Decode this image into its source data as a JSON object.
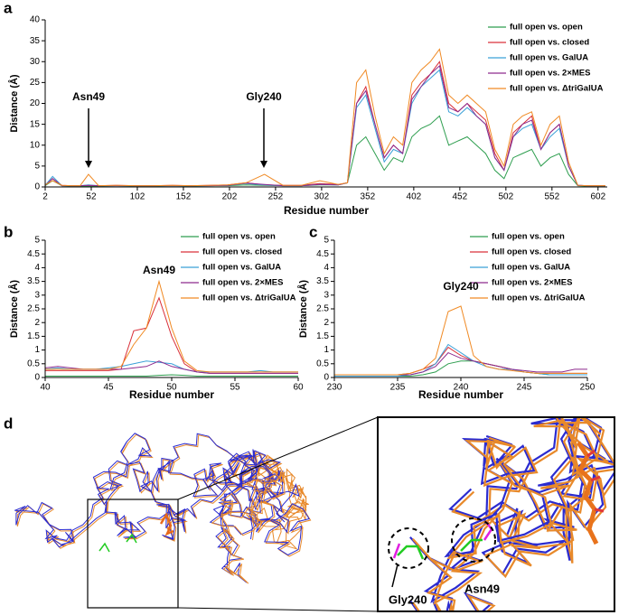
{
  "chart_data": [
    {
      "type": "line",
      "panel": "a",
      "xlabel": "Residue number",
      "ylabel": "Distance (Å)",
      "legend": "upper right",
      "annotations": [
        "Asn49",
        "Gly240"
      ],
      "x": [
        2,
        10,
        20,
        30,
        40,
        49,
        60,
        80,
        100,
        120,
        140,
        160,
        180,
        200,
        220,
        240,
        260,
        280,
        300,
        320,
        330,
        340,
        350,
        360,
        370,
        380,
        390,
        400,
        410,
        420,
        430,
        440,
        450,
        460,
        470,
        480,
        490,
        500,
        510,
        520,
        530,
        540,
        550,
        560,
        570,
        580,
        590,
        600,
        610
      ],
      "xlim": [
        2,
        612
      ],
      "xticks": [
        2,
        52,
        102,
        152,
        202,
        252,
        302,
        352,
        402,
        452,
        502,
        552,
        602
      ],
      "ylim": [
        0,
        40
      ],
      "yticks": [
        0,
        5,
        10,
        15,
        20,
        25,
        30,
        35,
        40
      ],
      "series": [
        {
          "name": "full open vs. open",
          "color": "#2e9e4f",
          "values": [
            0.3,
            1.5,
            0.3,
            0.2,
            0.2,
            0.2,
            0.2,
            0.3,
            0.2,
            0.2,
            0.3,
            0.2,
            0.3,
            0.3,
            0.5,
            0.4,
            0.3,
            0.3,
            0.5,
            0.5,
            1,
            10,
            12,
            8,
            4,
            7,
            6,
            12,
            14,
            15,
            17,
            10,
            11,
            12,
            10,
            8,
            4,
            2,
            7,
            8,
            9,
            5,
            7,
            8,
            3,
            0.3,
            0.2,
            0.2,
            0.2
          ]
        },
        {
          "name": "full open vs. closed",
          "color": "#d9303a",
          "values": [
            0.5,
            2,
            0.4,
            0.3,
            0.3,
            0.4,
            0.3,
            0.4,
            0.3,
            0.3,
            0.4,
            0.3,
            0.4,
            0.5,
            1,
            0.5,
            0.4,
            0.4,
            0.8,
            0.6,
            1,
            20,
            24,
            15,
            7,
            10,
            8,
            22,
            25,
            27,
            30,
            20,
            18,
            20,
            18,
            16,
            8,
            4,
            13,
            15,
            17,
            9,
            13,
            15,
            5,
            0.4,
            0.3,
            0.3,
            0.3
          ]
        },
        {
          "name": "full open vs. GalUA",
          "color": "#3aa0d8",
          "values": [
            0.4,
            2.5,
            0.3,
            0.3,
            0.3,
            0.5,
            0.3,
            0.3,
            0.3,
            0.3,
            0.3,
            0.3,
            0.3,
            0.4,
            0.8,
            0.5,
            0.3,
            0.3,
            0.6,
            0.5,
            1,
            19,
            22,
            14,
            6,
            9,
            8,
            20,
            24,
            26,
            28,
            18,
            17,
            19,
            17,
            15,
            7,
            4,
            12,
            14,
            15,
            9,
            12,
            14,
            5,
            0.4,
            0.3,
            0.3,
            0.3
          ]
        },
        {
          "name": "full open vs. 2×MES",
          "color": "#8e2a8e",
          "values": [
            0.4,
            2,
            0.3,
            0.3,
            0.3,
            0.4,
            0.3,
            0.3,
            0.3,
            0.3,
            0.3,
            0.3,
            0.3,
            0.4,
            0.9,
            0.6,
            0.3,
            0.3,
            0.6,
            0.5,
            1,
            20,
            23,
            15,
            7,
            10,
            8,
            21,
            24,
            27,
            29,
            19,
            18,
            20,
            17,
            15,
            7,
            4,
            12,
            15,
            16,
            9,
            13,
            15,
            5,
            0.4,
            0.3,
            0.3,
            0.3
          ]
        },
        {
          "name": "full open vs. ΔtriGalUA",
          "color": "#f08a24",
          "values": [
            0.5,
            1.5,
            0.4,
            0.3,
            0.3,
            3,
            0.3,
            0.4,
            0.3,
            0.3,
            0.4,
            0.3,
            0.4,
            0.5,
            1,
            3,
            0.4,
            0.4,
            1.5,
            0.6,
            1,
            25,
            28,
            17,
            8,
            12,
            10,
            25,
            28,
            30,
            33,
            22,
            20,
            22,
            20,
            18,
            9,
            5,
            15,
            17,
            18,
            10,
            15,
            17,
            6,
            0.4,
            0.3,
            0.3,
            0.3
          ]
        }
      ]
    },
    {
      "type": "line",
      "panel": "b",
      "xlabel": "Residue number",
      "ylabel": "Distance (Å)",
      "legend": "upper right",
      "annotations": [
        "Asn49"
      ],
      "x": [
        40,
        41,
        42,
        43,
        44,
        45,
        46,
        47,
        48,
        49,
        50,
        51,
        52,
        53,
        54,
        55,
        56,
        57,
        58,
        59,
        60
      ],
      "xlim": [
        40,
        60
      ],
      "xticks": [
        40,
        45,
        50,
        55,
        60
      ],
      "ylim": [
        0,
        5
      ],
      "yticks": [
        0,
        0.5,
        1,
        1.5,
        2,
        2.5,
        3,
        3.5,
        4,
        4.5,
        5
      ],
      "series": [
        {
          "name": "full open vs. open",
          "color": "#2e9e4f",
          "values": [
            0.05,
            0.05,
            0.05,
            0.05,
            0.05,
            0.05,
            0.05,
            0.05,
            0.05,
            0.08,
            0.1,
            0.08,
            0.05,
            0.05,
            0.05,
            0.05,
            0.05,
            0.05,
            0.05,
            0.05,
            0.05
          ]
        },
        {
          "name": "full open vs. closed",
          "color": "#d9303a",
          "values": [
            0.25,
            0.25,
            0.25,
            0.25,
            0.25,
            0.25,
            0.3,
            1.7,
            1.8,
            2.9,
            1.5,
            0.5,
            0.2,
            0.15,
            0.15,
            0.15,
            0.15,
            0.15,
            0.15,
            0.15,
            0.15
          ]
        },
        {
          "name": "full open vs. GalUA",
          "color": "#3aa0d8",
          "values": [
            0.3,
            0.35,
            0.3,
            0.3,
            0.3,
            0.35,
            0.4,
            0.5,
            0.6,
            0.55,
            0.5,
            0.3,
            0.2,
            0.2,
            0.2,
            0.2,
            0.2,
            0.25,
            0.2,
            0.2,
            0.2
          ]
        },
        {
          "name": "full open vs. 2×MES",
          "color": "#8e2a8e",
          "values": [
            0.35,
            0.4,
            0.35,
            0.3,
            0.3,
            0.3,
            0.3,
            0.35,
            0.4,
            0.6,
            0.4,
            0.3,
            0.2,
            0.15,
            0.15,
            0.15,
            0.15,
            0.15,
            0.15,
            0.15,
            0.15
          ]
        },
        {
          "name": "full open vs. ΔtriGalUA",
          "color": "#f08a24",
          "values": [
            0.3,
            0.3,
            0.3,
            0.3,
            0.3,
            0.3,
            0.4,
            1.2,
            1.8,
            3.5,
            1.8,
            0.6,
            0.25,
            0.2,
            0.2,
            0.2,
            0.2,
            0.2,
            0.2,
            0.2,
            0.2
          ]
        }
      ]
    },
    {
      "type": "line",
      "panel": "c",
      "xlabel": "Residue number",
      "ylabel": "Distance (Å)",
      "legend": "upper right",
      "annotations": [
        "Gly240"
      ],
      "x": [
        230,
        231,
        232,
        233,
        234,
        235,
        236,
        237,
        238,
        239,
        240,
        241,
        242,
        243,
        244,
        245,
        246,
        247,
        248,
        249,
        250
      ],
      "xlim": [
        230,
        250
      ],
      "xticks": [
        230,
        235,
        240,
        245,
        250
      ],
      "ylim": [
        0,
        5
      ],
      "yticks": [
        0,
        0.5,
        1,
        1.5,
        2,
        2.5,
        3,
        3.5,
        4,
        4.5,
        5
      ],
      "series": [
        {
          "name": "full open vs. open",
          "color": "#2e9e4f",
          "values": [
            0.05,
            0.05,
            0.05,
            0.05,
            0.05,
            0.05,
            0.05,
            0.1,
            0.2,
            0.5,
            0.6,
            0.6,
            0.5,
            0.4,
            0.3,
            0.2,
            0.15,
            0.1,
            0.1,
            0.1,
            0.1
          ]
        },
        {
          "name": "full open vs. closed",
          "color": "#d9303a",
          "values": [
            0.1,
            0.1,
            0.1,
            0.1,
            0.1,
            0.1,
            0.15,
            0.3,
            0.5,
            1.1,
            0.8,
            0.6,
            0.5,
            0.4,
            0.3,
            0.2,
            0.15,
            0.15,
            0.15,
            0.15,
            0.15
          ]
        },
        {
          "name": "full open vs. GalUA",
          "color": "#3aa0d8",
          "values": [
            0.05,
            0.05,
            0.05,
            0.05,
            0.05,
            0.05,
            0.1,
            0.2,
            0.5,
            1.2,
            0.9,
            0.6,
            0.4,
            0.3,
            0.3,
            0.2,
            0.15,
            0.1,
            0.1,
            0.1,
            0.1
          ]
        },
        {
          "name": "full open vs. 2×MES",
          "color": "#8e2a8e",
          "values": [
            0.1,
            0.1,
            0.1,
            0.1,
            0.1,
            0.1,
            0.1,
            0.2,
            0.4,
            0.9,
            0.7,
            0.6,
            0.5,
            0.4,
            0.3,
            0.25,
            0.2,
            0.2,
            0.2,
            0.3,
            0.3
          ]
        },
        {
          "name": "full open vs. ΔtriGalUA",
          "color": "#f08a24",
          "values": [
            0.1,
            0.1,
            0.1,
            0.1,
            0.1,
            0.1,
            0.15,
            0.3,
            0.7,
            2.4,
            2.6,
            0.8,
            0.4,
            0.3,
            0.25,
            0.2,
            0.15,
            0.15,
            0.15,
            0.15,
            0.15
          ]
        }
      ]
    }
  ],
  "structure": {
    "panel": "d",
    "residues": [
      "Gly240",
      "Asn49"
    ]
  }
}
